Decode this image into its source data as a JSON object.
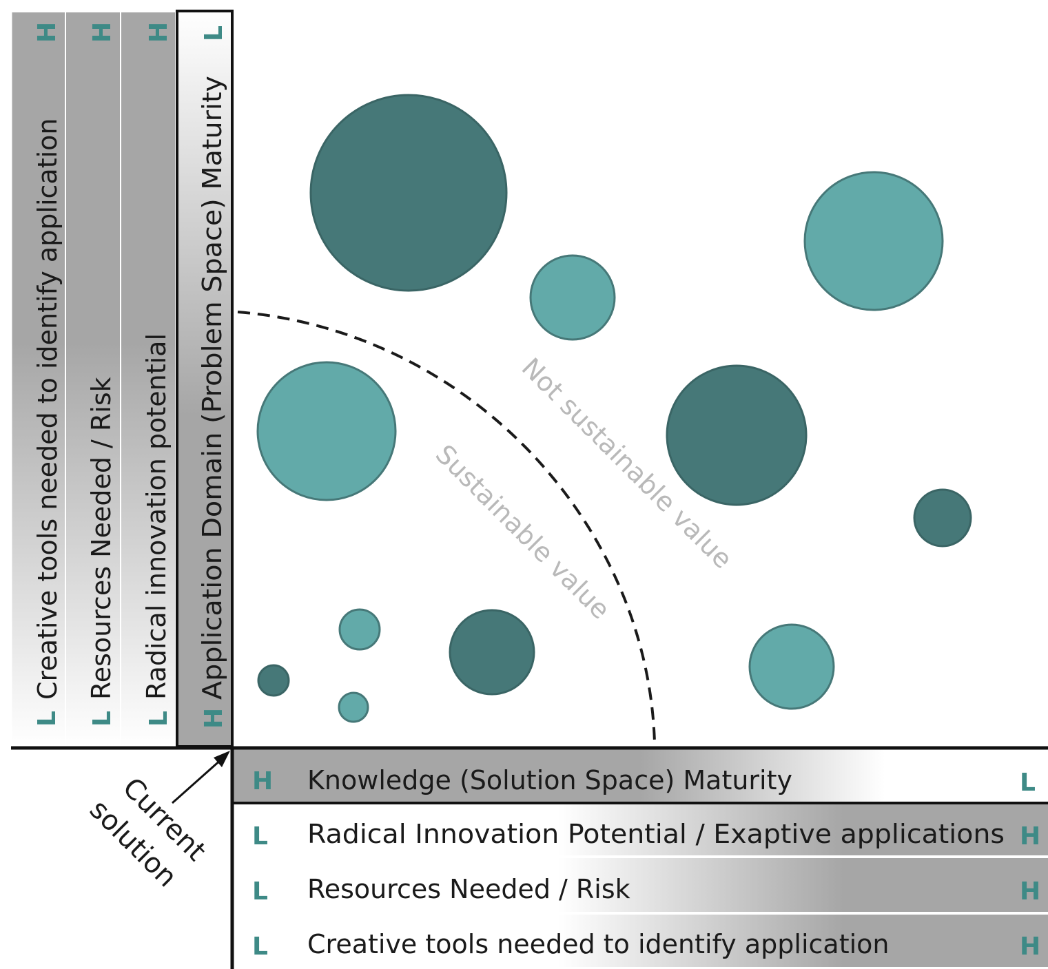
{
  "vertical_bands": [
    {
      "label": "Creative tools needed to identify application",
      "bottom_mark": "L",
      "top_mark": "H"
    },
    {
      "label": "Resources Needed / Risk",
      "bottom_mark": "L",
      "top_mark": "H"
    },
    {
      "label": "Radical innovation potential",
      "bottom_mark": "L",
      "top_mark": "H"
    },
    {
      "label": "Application Domain (Problem Space) Maturity",
      "bottom_mark": "H",
      "top_mark": "L"
    }
  ],
  "horizontal_bands": [
    {
      "label": "Knowledge (Solution Space) Maturity",
      "left_mark": "H",
      "right_mark": "L"
    },
    {
      "label": "Radical Innovation Potential / Exaptive applications",
      "left_mark": "L",
      "right_mark": "H"
    },
    {
      "label": "Resources Needed / Risk",
      "left_mark": "L",
      "right_mark": "H"
    },
    {
      "label": "Creative tools needed to identify application",
      "left_mark": "L",
      "right_mark": "H"
    }
  ],
  "regions": {
    "inside": "Sustainable value",
    "outside": "Not sustainable value"
  },
  "callout": {
    "line1": "Current",
    "line2": "solution"
  },
  "colors": {
    "dark_bubble": "#467878",
    "light_bubble": "#62aaa9",
    "mark": "#3e8a86"
  }
}
